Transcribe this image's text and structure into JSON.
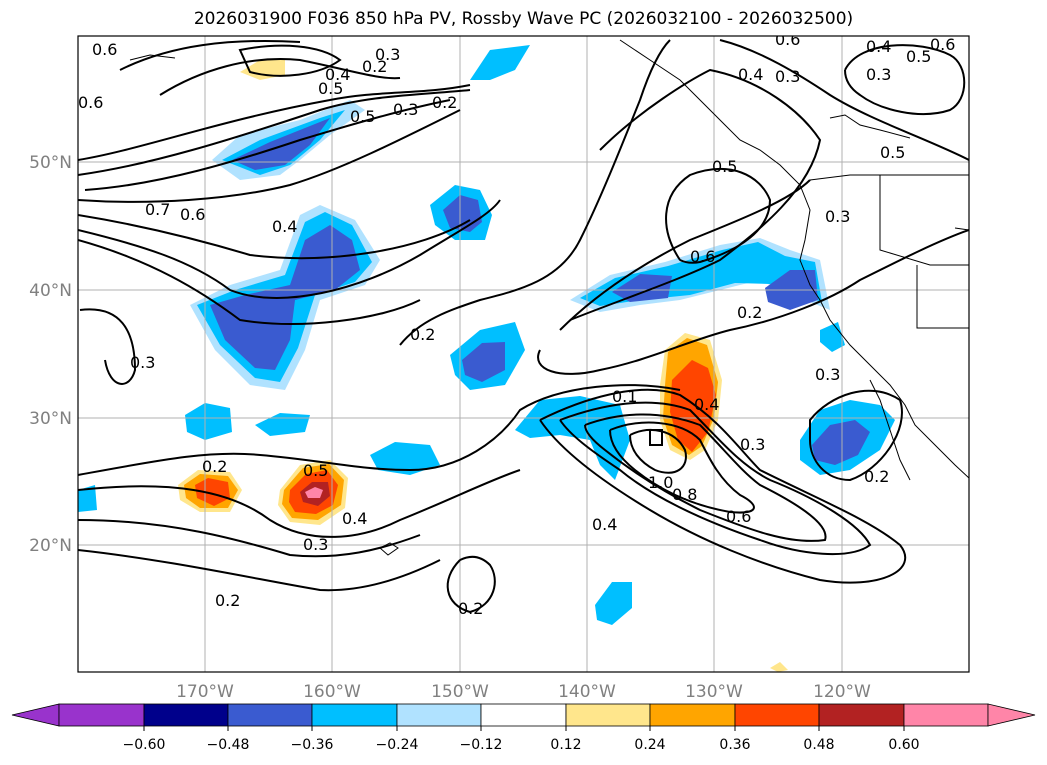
{
  "title": "2026031900 F036 850 hPa PV, Rossby Wave PC (2026032100 - 2026032500)",
  "map": {
    "lat_labels": [
      "50°N",
      "40°N",
      "30°N",
      "20°N"
    ],
    "lon_labels": [
      "170°W",
      "160°W",
      "150°W",
      "140°W",
      "130°W",
      "120°W"
    ],
    "contour_labels": [
      "0.6",
      "0.6",
      "0.5",
      "0.3",
      "0.2",
      "0.2",
      "0.7",
      "0.6",
      "0.4",
      "0.2",
      "0.1",
      "0.3",
      "0.2",
      "0.5",
      "0.6",
      "0.4",
      "0.3",
      "0.3",
      "1.0",
      "0.8",
      "0.6",
      "0.4",
      "0.3",
      "0.4",
      "0.2",
      "0.2",
      "0.3",
      "0.5",
      "0.4",
      "0.3",
      "0.2",
      "0.2",
      "0.6",
      "0.4",
      "0.5",
      "0.3",
      "0.5",
      "0.6",
      "0.5",
      "0.3",
      "0.4"
    ],
    "colors": {
      "land_outline": "#000000",
      "grid": "#b0b0b0"
    }
  },
  "colorbar": {
    "ticks": [
      "−0.60",
      "−0.48",
      "−0.36",
      "−0.24",
      "−0.12",
      "0.12",
      "0.24",
      "0.36",
      "0.48",
      "0.60"
    ],
    "colors": [
      "#9933cc",
      "#00008b",
      "#3a5bd0",
      "#00bfff",
      "#b0e2ff",
      "#ffffff",
      "#ffe68c",
      "#ffa500",
      "#ff4500",
      "#b22222",
      "#ff85a8"
    ]
  }
}
